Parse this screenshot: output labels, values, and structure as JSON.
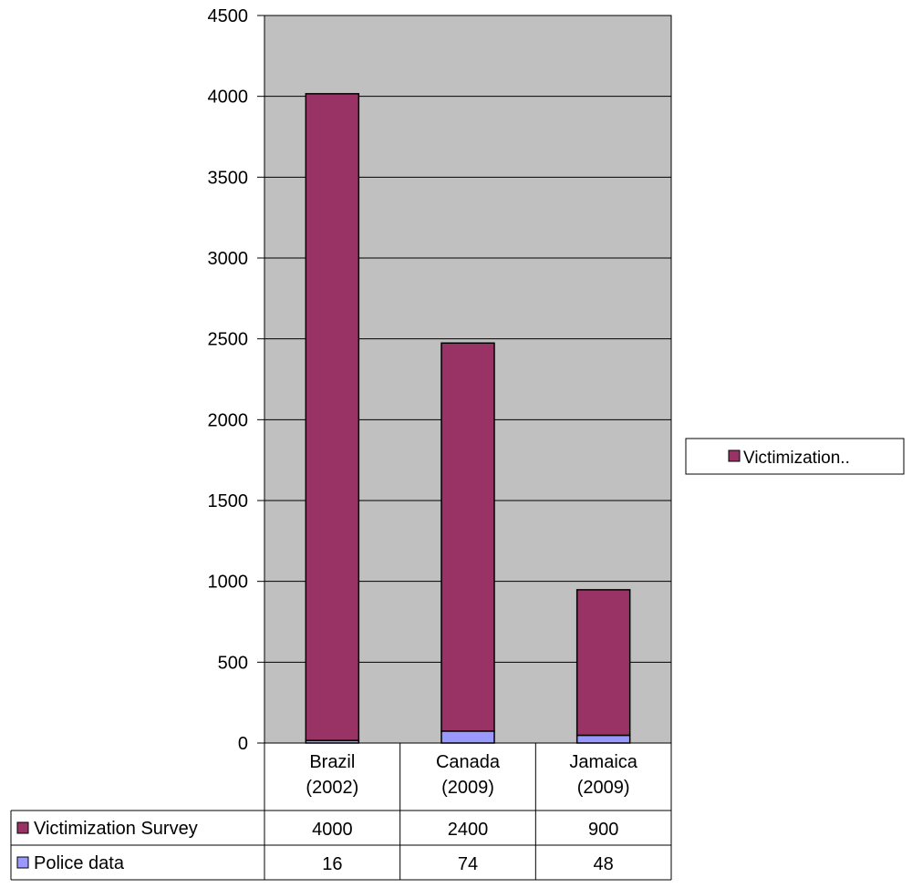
{
  "chart_data": {
    "type": "bar",
    "stacked": true,
    "categories": [
      "Brazil (2002)",
      "Canada (2009)",
      "Jamaica (2009)"
    ],
    "category_lines": [
      [
        "Brazil",
        "(2002)"
      ],
      [
        "Canada",
        "(2009)"
      ],
      [
        "Jamaica",
        "(2009)"
      ]
    ],
    "series": [
      {
        "name": "Police data",
        "values": [
          16,
          74,
          48
        ],
        "color": "#9999ff"
      },
      {
        "name": "Victimization Survey",
        "values": [
          4000,
          2400,
          900
        ],
        "color": "#993366"
      }
    ],
    "table_rows": [
      {
        "label": "Victimization Survey",
        "series_index": 1
      },
      {
        "label": "Police data",
        "series_index": 0
      }
    ],
    "ylim": [
      0,
      4500
    ],
    "yticks": [
      0,
      500,
      1000,
      1500,
      2000,
      2500,
      3000,
      3500,
      4000,
      4500
    ],
    "grid": true,
    "plot_background": "#c0c0c0",
    "legend": {
      "position": "right",
      "label": "Victimization.."
    }
  }
}
